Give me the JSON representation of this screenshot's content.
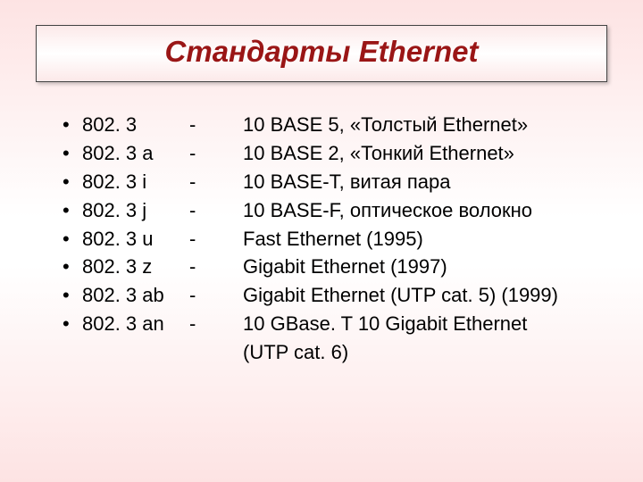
{
  "title": "Стандарты Ethernet",
  "colors": {
    "title_color": "#9a1616",
    "text_color": "#000000",
    "border_color": "#444444",
    "bg_top": "#fde3e3",
    "bg_mid": "#ffffff"
  },
  "typography": {
    "title_fontsize": 33,
    "title_weight": "bold",
    "title_style": "italic",
    "body_fontsize": 22,
    "font_family": "Arial"
  },
  "bullet_char": "•",
  "dash_char": "-",
  "rows": [
    {
      "standard": "802. 3",
      "desc": "10 BASE 5, «Толстый Ethernet»"
    },
    {
      "standard": "802. 3 a",
      "desc": "10 BASE 2, «Тонкий Ethernet»"
    },
    {
      "standard": "802. 3 i",
      "desc": "10 BASE-T, витая пара"
    },
    {
      "standard": "802. 3 j",
      "desc": "10 BASE-F, оптическое волокно"
    },
    {
      "standard": "802. 3 u",
      "desc": "Fast Ethernet (1995)"
    },
    {
      "standard": "802. 3 z",
      "desc": "Gigabit Ethernet (1997)"
    },
    {
      "standard": "802. 3 ab",
      "desc": "Gigabit Ethernet  (UTP cat. 5) (1999)"
    },
    {
      "standard": "802. 3 an",
      "desc": "10 GBase. T 10 Gigabit Ethernet"
    }
  ],
  "continuation": "(UTP cat. 6)"
}
